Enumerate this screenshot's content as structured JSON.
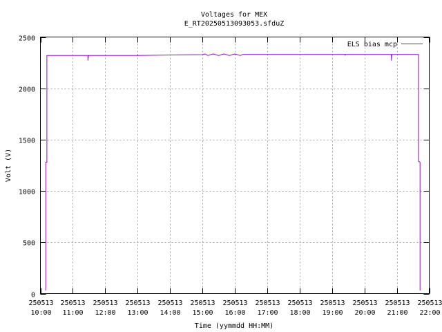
{
  "chart_data": {
    "type": "line",
    "title": "Voltages for MEX",
    "subtitle": "E_RT20250513093053.sfduZ",
    "xlabel": "Time (yymmdd HH:MM)",
    "ylabel": "Volt (V)",
    "xlim": [
      "2025-05-13 10:00",
      "2025-05-13 22:00"
    ],
    "ylim": [
      0,
      2500
    ],
    "grid": true,
    "legend_position": "top-right",
    "yticks": [
      {
        "value": 0,
        "label": "0"
      },
      {
        "value": 500,
        "label": "500"
      },
      {
        "value": 1000,
        "label": "1000"
      },
      {
        "value": 1500,
        "label": "1500"
      },
      {
        "value": 2000,
        "label": "2000"
      },
      {
        "value": 2500,
        "label": "2500"
      }
    ],
    "xticks": [
      {
        "value": "2025-05-13 10:00",
        "date": "250513",
        "time": "10:00"
      },
      {
        "value": "2025-05-13 11:00",
        "date": "250513",
        "time": "11:00"
      },
      {
        "value": "2025-05-13 12:00",
        "date": "250513",
        "time": "12:00"
      },
      {
        "value": "2025-05-13 13:00",
        "date": "250513",
        "time": "13:00"
      },
      {
        "value": "2025-05-13 14:00",
        "date": "250513",
        "time": "14:00"
      },
      {
        "value": "2025-05-13 15:00",
        "date": "250513",
        "time": "15:00"
      },
      {
        "value": "2025-05-13 16:00",
        "date": "250513",
        "time": "16:00"
      },
      {
        "value": "2025-05-13 17:00",
        "date": "250513",
        "time": "17:00"
      },
      {
        "value": "2025-05-13 18:00",
        "date": "250513",
        "time": "18:00"
      },
      {
        "value": "2025-05-13 19:00",
        "date": "250513",
        "time": "19:00"
      },
      {
        "value": "2025-05-13 20:00",
        "date": "250513",
        "time": "20:00"
      },
      {
        "value": "2025-05-13 21:00",
        "date": "250513",
        "time": "21:00"
      },
      {
        "value": "2025-05-13 22:00",
        "date": "250513",
        "time": "22:00"
      }
    ],
    "series": [
      {
        "name": "ELS bias mcp",
        "color": "#9400d3",
        "points": [
          [
            "2025-05-13 10:10",
            30
          ],
          [
            "2025-05-13 10:10",
            1280
          ],
          [
            "2025-05-13 10:12",
            1280
          ],
          [
            "2025-05-13 10:12",
            2320
          ],
          [
            "2025-05-13 11:28",
            2320
          ],
          [
            "2025-05-13 11:28",
            2270
          ],
          [
            "2025-05-13 11:29",
            2320
          ],
          [
            "2025-05-13 13:00",
            2320
          ],
          [
            "2025-05-13 13:00",
            2330
          ],
          [
            "2025-05-13 13:01",
            2320
          ],
          [
            "2025-05-13 14:00",
            2325
          ],
          [
            "2025-05-13 15:00",
            2328
          ],
          [
            "2025-05-13 15:05",
            2335
          ],
          [
            "2025-05-13 15:10",
            2320
          ],
          [
            "2025-05-13 15:20",
            2335
          ],
          [
            "2025-05-13 15:30",
            2320
          ],
          [
            "2025-05-13 15:40",
            2335
          ],
          [
            "2025-05-13 15:50",
            2320
          ],
          [
            "2025-05-13 16:00",
            2335
          ],
          [
            "2025-05-13 16:10",
            2320
          ],
          [
            "2025-05-13 16:15",
            2330
          ],
          [
            "2025-05-13 16:30",
            2330
          ],
          [
            "2025-05-13 17:00",
            2330
          ],
          [
            "2025-05-13 18:00",
            2330
          ],
          [
            "2025-05-13 19:00",
            2330
          ],
          [
            "2025-05-13 19:24",
            2330
          ],
          [
            "2025-05-13 19:24",
            2320
          ],
          [
            "2025-05-13 19:25",
            2330
          ],
          [
            "2025-05-13 20:00",
            2330
          ],
          [
            "2025-05-13 20:50",
            2330
          ],
          [
            "2025-05-13 20:50",
            2270
          ],
          [
            "2025-05-13 20:51",
            2330
          ],
          [
            "2025-05-13 21:40",
            2330
          ],
          [
            "2025-05-13 21:40",
            1290
          ],
          [
            "2025-05-13 21:43",
            1280
          ],
          [
            "2025-05-13 21:43",
            30
          ]
        ]
      }
    ]
  }
}
